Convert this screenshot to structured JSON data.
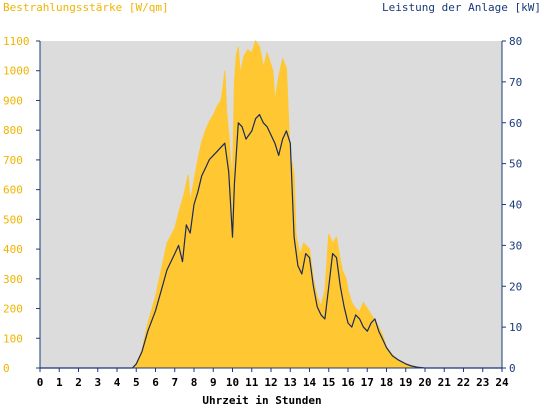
{
  "chart_data": {
    "type": "area",
    "left_title": "Bestrahlungsstärke [W/qm]",
    "right_title": "Leistung der Anlage [kW]",
    "xlabel": "Uhrzeit in Stunden",
    "xlim": [
      0,
      24
    ],
    "ylim_left": [
      0,
      1100
    ],
    "ylim_right": [
      0,
      80
    ],
    "x_ticks": [
      0,
      1,
      2,
      3,
      4,
      5,
      6,
      7,
      8,
      9,
      10,
      11,
      12,
      13,
      14,
      15,
      16,
      17,
      18,
      19,
      20,
      21,
      22,
      23,
      24
    ],
    "y_ticks_left": [
      0,
      100,
      200,
      300,
      400,
      500,
      600,
      700,
      800,
      900,
      1000,
      1100
    ],
    "y_ticks_right": [
      0,
      10,
      20,
      30,
      40,
      50,
      60,
      70,
      80
    ],
    "grid": false,
    "colors": {
      "plot_bg": "#dcdcdc",
      "irradiance": "#ffc832",
      "power": "#1a2a5a",
      "left_axis_text": "#f0b400",
      "right_axis_text": "#1a3a7a",
      "axis": "#1a3a7a"
    },
    "series": [
      {
        "axis": "left",
        "style": "area",
        "x": [
          0,
          4.8,
          5.0,
          5.3,
          5.6,
          6.0,
          6.3,
          6.6,
          7.0,
          7.2,
          7.5,
          7.7,
          7.8,
          8.0,
          8.2,
          8.4,
          8.6,
          8.8,
          9.0,
          9.2,
          9.4,
          9.5,
          9.6,
          9.7,
          9.8,
          9.9,
          10.0,
          10.1,
          10.2,
          10.3,
          10.4,
          10.5,
          10.6,
          10.8,
          11.0,
          11.2,
          11.4,
          11.5,
          11.6,
          11.8,
          12.0,
          12.1,
          12.2,
          12.4,
          12.6,
          12.8,
          13.0,
          13.1,
          13.2,
          13.3,
          13.5,
          13.7,
          14.0,
          14.2,
          14.4,
          14.6,
          14.8,
          15.0,
          15.2,
          15.4,
          15.5,
          15.7,
          15.9,
          16.0,
          16.2,
          16.4,
          16.6,
          16.8,
          17.0,
          17.2,
          17.5,
          17.8,
          18.0,
          18.3,
          18.6,
          19.0,
          19.3,
          19.6,
          20.0,
          20.3,
          24
        ],
        "y": [
          0,
          0,
          15,
          60,
          150,
          240,
          330,
          420,
          470,
          520,
          590,
          650,
          560,
          630,
          700,
          760,
          800,
          830,
          850,
          880,
          900,
          940,
          1000,
          860,
          790,
          700,
          630,
          960,
          1050,
          1080,
          990,
          1020,
          1050,
          1070,
          1060,
          1100,
          1080,
          1050,
          1010,
          1060,
          1020,
          1000,
          900,
          980,
          1040,
          1010,
          700,
          690,
          650,
          450,
          380,
          420,
          400,
          300,
          240,
          210,
          260,
          450,
          420,
          440,
          400,
          330,
          300,
          260,
          220,
          200,
          190,
          220,
          200,
          180,
          150,
          110,
          70,
          45,
          25,
          15,
          8,
          3,
          0,
          0,
          0
        ]
      },
      {
        "axis": "right",
        "style": "line",
        "x": [
          0,
          4.8,
          5.0,
          5.3,
          5.6,
          6.0,
          6.3,
          6.6,
          7.0,
          7.2,
          7.4,
          7.6,
          7.8,
          8.0,
          8.2,
          8.4,
          8.6,
          8.8,
          9.0,
          9.2,
          9.4,
          9.6,
          9.8,
          10.0,
          10.1,
          10.3,
          10.5,
          10.7,
          11.0,
          11.2,
          11.4,
          11.6,
          11.8,
          12.0,
          12.2,
          12.4,
          12.6,
          12.8,
          13.0,
          13.2,
          13.4,
          13.6,
          13.8,
          14.0,
          14.2,
          14.4,
          14.6,
          14.8,
          15.0,
          15.2,
          15.4,
          15.6,
          15.8,
          16.0,
          16.2,
          16.4,
          16.6,
          16.8,
          17.0,
          17.2,
          17.4,
          17.6,
          17.8,
          18.0,
          18.3,
          18.6,
          19.0,
          19.3,
          19.6,
          20.0,
          24
        ],
        "y": [
          0,
          0,
          1,
          4,
          9,
          14,
          19,
          24,
          28,
          30,
          26,
          35,
          33,
          40,
          43,
          47,
          49,
          51,
          52,
          53,
          54,
          55,
          48,
          32,
          45,
          60,
          59,
          56,
          58,
          61,
          62,
          60,
          59,
          57,
          55,
          52,
          56,
          58,
          55,
          32,
          25,
          23,
          28,
          27,
          20,
          15,
          13,
          12,
          20,
          28,
          27,
          20,
          15,
          11,
          10,
          13,
          12,
          10,
          9,
          11,
          12,
          9,
          7,
          5,
          3,
          2,
          1,
          0.5,
          0.2,
          0,
          0
        ]
      }
    ]
  }
}
